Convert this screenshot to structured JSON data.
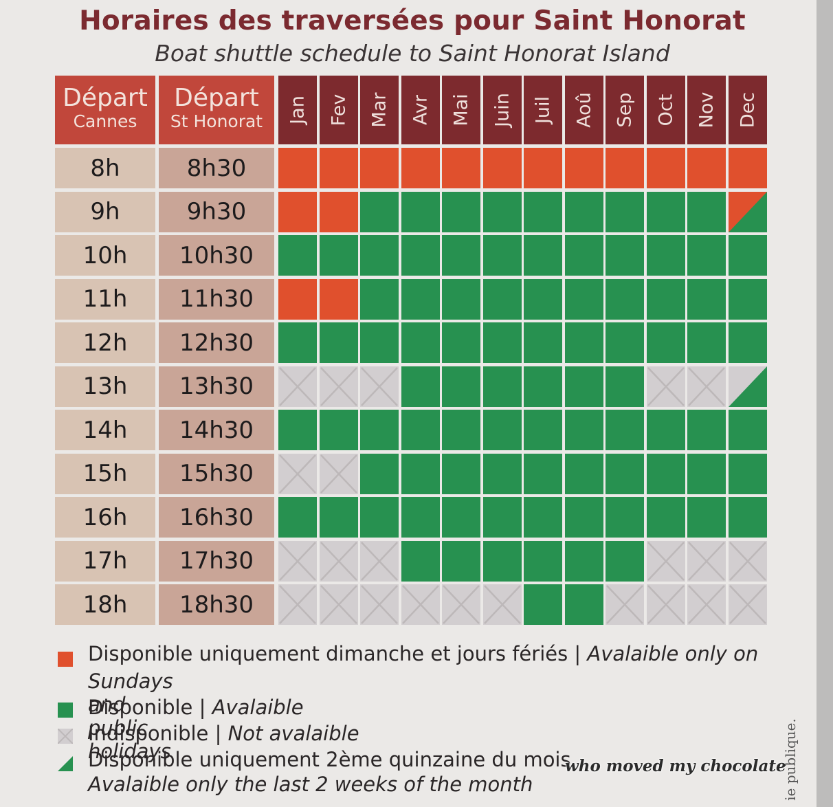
{
  "title": "Horaires des traversées pour Saint Honorat",
  "subtitle": "Boat shuttle schedule to Saint Honorat Island",
  "headers": {
    "cannes": {
      "line1": "Départ",
      "line2": "Cannes"
    },
    "honorat": {
      "line1": "Départ",
      "line2": "St Honorat"
    }
  },
  "months": [
    "Jan",
    "Fev",
    "Mar",
    "Avr",
    "Mai",
    "Juin",
    "Juil",
    "Aoû",
    "Sep",
    "Oct",
    "Nov",
    "Dec"
  ],
  "rows": [
    {
      "cannes": "8h",
      "honorat": "8h30",
      "status": [
        "S",
        "S",
        "S",
        "S",
        "S",
        "S",
        "S",
        "S",
        "S",
        "S",
        "S",
        "S"
      ]
    },
    {
      "cannes": "9h",
      "honorat": "9h30",
      "status": [
        "S",
        "S",
        "A",
        "A",
        "A",
        "A",
        "A",
        "A",
        "A",
        "A",
        "A",
        "SH"
      ]
    },
    {
      "cannes": "10h",
      "honorat": "10h30",
      "status": [
        "A",
        "A",
        "A",
        "A",
        "A",
        "A",
        "A",
        "A",
        "A",
        "A",
        "A",
        "A"
      ]
    },
    {
      "cannes": "11h",
      "honorat": "11h30",
      "status": [
        "S",
        "S",
        "A",
        "A",
        "A",
        "A",
        "A",
        "A",
        "A",
        "A",
        "A",
        "A"
      ]
    },
    {
      "cannes": "12h",
      "honorat": "12h30",
      "status": [
        "A",
        "A",
        "A",
        "A",
        "A",
        "A",
        "A",
        "A",
        "A",
        "A",
        "A",
        "A"
      ]
    },
    {
      "cannes": "13h",
      "honorat": "13h30",
      "status": [
        "N",
        "N",
        "N",
        "A",
        "A",
        "A",
        "A",
        "A",
        "A",
        "N",
        "N",
        "H"
      ]
    },
    {
      "cannes": "14h",
      "honorat": "14h30",
      "status": [
        "A",
        "A",
        "A",
        "A",
        "A",
        "A",
        "A",
        "A",
        "A",
        "A",
        "A",
        "A"
      ]
    },
    {
      "cannes": "15h",
      "honorat": "15h30",
      "status": [
        "N",
        "N",
        "A",
        "A",
        "A",
        "A",
        "A",
        "A",
        "A",
        "A",
        "A",
        "A"
      ]
    },
    {
      "cannes": "16h",
      "honorat": "16h30",
      "status": [
        "A",
        "A",
        "A",
        "A",
        "A",
        "A",
        "A",
        "A",
        "A",
        "A",
        "A",
        "A"
      ]
    },
    {
      "cannes": "17h",
      "honorat": "17h30",
      "status": [
        "N",
        "N",
        "N",
        "A",
        "A",
        "A",
        "A",
        "A",
        "A",
        "N",
        "N",
        "N"
      ]
    },
    {
      "cannes": "18h",
      "honorat": "18h30",
      "status": [
        "N",
        "N",
        "N",
        "N",
        "N",
        "N",
        "A",
        "A",
        "N",
        "N",
        "N",
        "N"
      ]
    }
  ],
  "colors": {
    "sunday": "#e0502d",
    "available": "#279150",
    "unavailable": "#d2ced0",
    "cross": "#bdb8b9"
  },
  "legend": {
    "sunday_fr": "Disponible uniquement dimanche et jours fériés | ",
    "sunday_en_a": "Avalaible only on",
    "sunday_en_b": "Sundays and public holidays",
    "avail_fr": "Disponible | ",
    "avail_en": "Avalaible",
    "unavail_fr": "Indisponible | ",
    "unavail_en": "Not avalaible",
    "half_fr": "Disponible uniquement 2ème quinzaine du mois",
    "half_en": "Avalaible only the last 2 weeks of the month"
  },
  "watermark": "who moved my chocolate",
  "side_text": "ie publique."
}
